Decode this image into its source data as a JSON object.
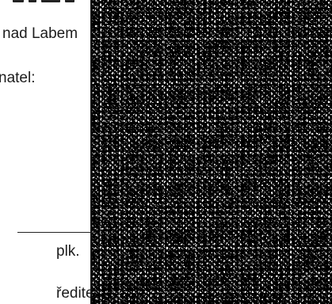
{
  "document": {
    "place_fragment": "nad Labem",
    "role_fragment": "natel:",
    "rank": "plk.",
    "title_fragment": "ředite"
  },
  "redaction": {
    "icon": "redacted-noise-block"
  }
}
